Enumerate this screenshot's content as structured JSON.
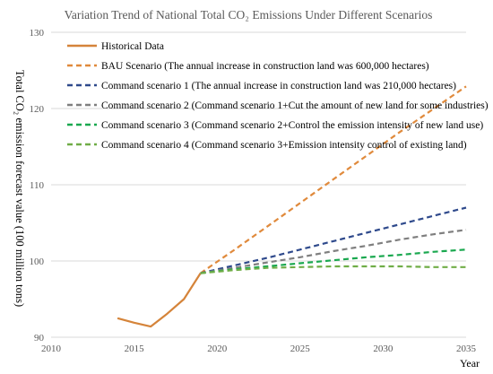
{
  "chart_data": {
    "type": "line",
    "title": "Variation Trend of National Total CO₂ Emissions Under Different Scenarios",
    "xlabel": "Year",
    "ylabel": "Total CO₂ emission forecast value (100 million tons)",
    "xlim": [
      2010,
      2035
    ],
    "ylim": [
      90,
      130
    ],
    "xticks": [
      2010,
      2015,
      2020,
      2025,
      2030,
      2035
    ],
    "yticks": [
      90,
      100,
      110,
      120,
      130
    ],
    "grid": "horizontal",
    "legend_position": "top-left, inside plot",
    "series": [
      {
        "name": "Historical Data",
        "color": "#d5843a",
        "style": "solid",
        "x": [
          2014,
          2015,
          2016,
          2017,
          2018,
          2019
        ],
        "y": [
          92.5,
          91.9,
          91.4,
          93.1,
          95.0,
          98.4
        ]
      },
      {
        "name": "BAU Scenario (The annual increase in construction land was 600,000 hectares)",
        "color": "#e08a3c",
        "style": "dashed",
        "x": [
          2019,
          2021,
          2023,
          2025,
          2027,
          2029,
          2031,
          2033,
          2035
        ],
        "y": [
          98.4,
          101.4,
          104.5,
          107.6,
          110.7,
          113.8,
          116.9,
          119.9,
          122.9
        ]
      },
      {
        "name": "Command scenario 1 (The annual increase in construction land was 210,000 hectares)",
        "color": "#2f4a8c",
        "style": "dashed",
        "x": [
          2019,
          2021,
          2023,
          2025,
          2027,
          2029,
          2031,
          2033,
          2035
        ],
        "y": [
          98.4,
          99.4,
          100.4,
          101.5,
          102.6,
          103.7,
          104.8,
          105.9,
          107.0
        ]
      },
      {
        "name": "Command scenario 2 (Command scenario 1+Cut the amount of new land for some industries)",
        "color": "#7f7f7f",
        "style": "dashed",
        "x": [
          2019,
          2021,
          2023,
          2025,
          2027,
          2029,
          2031,
          2033,
          2035
        ],
        "y": [
          98.4,
          99.1,
          99.8,
          100.5,
          101.3,
          102.0,
          102.8,
          103.5,
          104.1
        ]
      },
      {
        "name": "Command scenario 3 (Command scenario 2+Control the emission intensity of new land use)",
        "color": "#1aa84f",
        "style": "dashed",
        "x": [
          2019,
          2021,
          2023,
          2025,
          2027,
          2029,
          2031,
          2033,
          2035
        ],
        "y": [
          98.4,
          98.9,
          99.3,
          99.7,
          100.1,
          100.5,
          100.8,
          101.2,
          101.5
        ]
      },
      {
        "name": "Command scenario 4 (Command scenario 3+Emission intensity control of existing land)",
        "color": "#70ad47",
        "style": "dashed",
        "x": [
          2019,
          2021,
          2023,
          2025,
          2027,
          2029,
          2031,
          2033,
          2035
        ],
        "y": [
          98.4,
          98.8,
          99.1,
          99.2,
          99.3,
          99.3,
          99.3,
          99.2,
          99.2
        ]
      }
    ]
  }
}
